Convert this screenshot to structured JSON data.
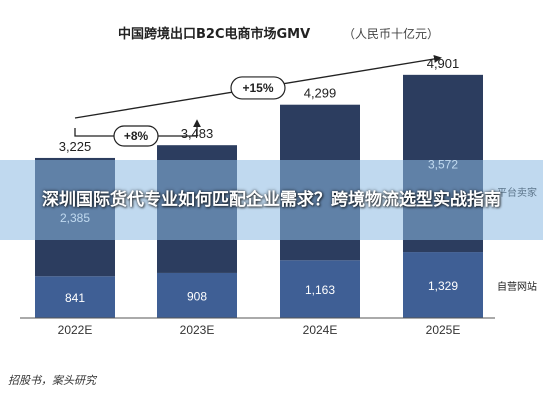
{
  "chart_data": {
    "type": "bar",
    "stacked": true,
    "title": "中国跨境出口B2C电商市场GMV",
    "unit": "（人民币十亿元）",
    "categories": [
      "2022E",
      "2023E",
      "2024E",
      "2025E"
    ],
    "series": [
      {
        "name": "自营网站",
        "values": [
          841,
          908,
          1163,
          1329
        ],
        "color": "#3f5f95"
      },
      {
        "name": "",
        "values": [
          2385,
          2575,
          3136,
          3572
        ],
        "labels": [
          "2,385",
          "",
          "",
          "3,572"
        ],
        "color": "#2c3d5f"
      }
    ],
    "totals": [
      3225,
      3483,
      4299,
      4901
    ],
    "total_labels": [
      "3,225",
      "3,483",
      "4,299",
      "4,901"
    ],
    "segment_labels_bottom": [
      "841",
      "908",
      "1,163",
      "1,329"
    ],
    "ylim": [
      0,
      5200
    ],
    "annotations": [
      {
        "text": "+8%",
        "from": "2022E",
        "to": "2023E"
      },
      {
        "text": "+15%",
        "from": "2022E",
        "to": "2025E"
      }
    ],
    "legend": {
      "placement": "right",
      "items": [
        "平台卖家",
        "自营网站"
      ]
    },
    "grid": false
  },
  "overlay": {
    "title": "深圳国际货代专业如何匹配企业需求？跨境物流选型实战指南"
  },
  "source": "招股书，案头研究",
  "colors": {
    "bottom": "#3f5f95",
    "top": "#2c3d5f",
    "arrow": "#222222"
  }
}
